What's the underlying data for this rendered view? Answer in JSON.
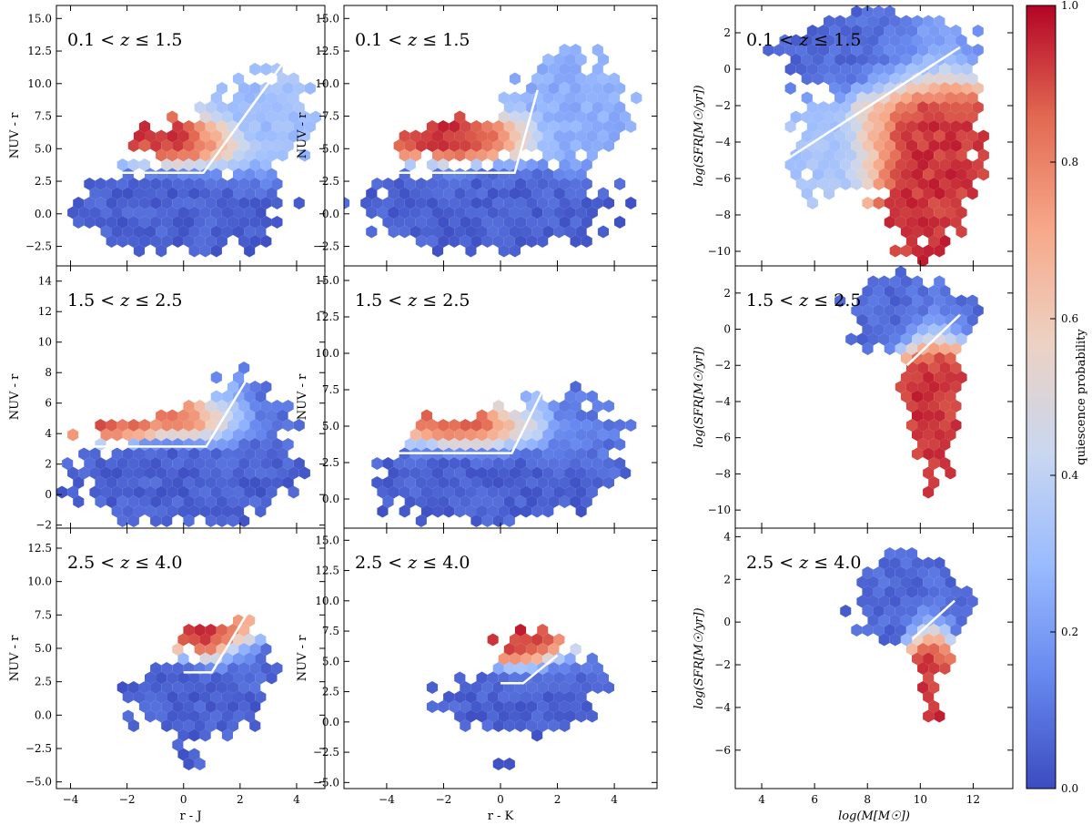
{
  "chart_data": {
    "type": "hexbin",
    "layout": "3x3 grid",
    "colorbar": {
      "label": "quiescence probability",
      "range": [
        0.0,
        1.0
      ],
      "ticks": [
        "0.0",
        "0.2",
        "0.4",
        "0.6",
        "0.8",
        "1.0"
      ],
      "colormap": "coolwarm",
      "stops": [
        "#3b4cc0",
        "#6788ee",
        "#9abbff",
        "#c9d7f0",
        "#edd1c2",
        "#f7a889",
        "#e26952",
        "#b40426"
      ]
    },
    "rows": [
      {
        "label": "0.1 < z ≤ 1.5",
        "prefix": "0.1 < ",
        "var": "z",
        "suffix": " ≤ 1.5"
      },
      {
        "label": "1.5 < z ≤ 2.5",
        "prefix": "1.5 < ",
        "var": "z",
        "suffix": " ≤ 2.5"
      },
      {
        "label": "2.5 < z ≤ 4.0",
        "prefix": "2.5 < ",
        "var": "z",
        "suffix": " ≤ 4.0"
      }
    ],
    "columns": [
      {
        "xlabel": "r - J",
        "xlim": [
          -4.5,
          5.0
        ],
        "xticks": [
          -4,
          -2,
          0,
          2,
          4
        ]
      },
      {
        "xlabel": "r - K",
        "xlim": [
          -5.5,
          5.5
        ],
        "xticks": [
          -4,
          -2,
          0,
          2,
          4
        ]
      },
      {
        "xlabel": "log(M[M☉])",
        "xlim": [
          3.0,
          13.5
        ],
        "xticks": [
          4,
          6,
          8,
          10,
          12
        ]
      }
    ],
    "panels": [
      {
        "id": "rJ-z1",
        "ylabel": "NUV - r",
        "ylim": [
          -4.0,
          16.0
        ],
        "yticks": [
          "-2.5",
          "0.0",
          "2.5",
          "5.0",
          "7.5",
          "10.0",
          "12.5",
          "15.0"
        ],
        "cut_line": [
          [
            -4.0,
            3.15
          ],
          [
            0.7,
            3.15
          ],
          [
            4.0,
            13.0
          ]
        ],
        "blobs": [
          {
            "x": 0.0,
            "y": 0.3,
            "sx": 1.8,
            "sy": 1.6,
            "w": 1.0,
            "p": 0.05
          },
          {
            "x": 2.5,
            "y": 7.0,
            "sx": 1.0,
            "sy": 2.2,
            "w": 0.5,
            "p": 0.28
          },
          {
            "x": 0.0,
            "y": 5.5,
            "sx": 1.2,
            "sy": 1.0,
            "w": 0.45,
            "p": 0.93
          },
          {
            "x": 1.2,
            "y": 6.0,
            "sx": 0.4,
            "sy": 0.9,
            "w": 0.2,
            "p": 0.7
          },
          {
            "x": 3.6,
            "y": 9.0,
            "sx": 0.5,
            "sy": 2.0,
            "w": 0.2,
            "p": 0.35
          }
        ]
      },
      {
        "id": "rK-z1",
        "ylabel": "NUV - r",
        "ylim": [
          -4.0,
          16.0
        ],
        "yticks": [
          "-2.5",
          "0.0",
          "2.5",
          "5.0",
          "7.5",
          "10.0",
          "12.5",
          "15.0"
        ],
        "cut_line": [
          [
            -5.0,
            3.15
          ],
          [
            0.5,
            3.15
          ],
          [
            1.3,
            9.5
          ]
        ],
        "blobs": [
          {
            "x": -0.5,
            "y": 0.5,
            "sx": 2.2,
            "sy": 1.6,
            "w": 1.0,
            "p": 0.05
          },
          {
            "x": 2.5,
            "y": 8.0,
            "sx": 1.2,
            "sy": 2.4,
            "w": 0.55,
            "p": 0.25
          },
          {
            "x": -1.5,
            "y": 5.6,
            "sx": 1.2,
            "sy": 1.0,
            "w": 0.45,
            "p": 0.93
          },
          {
            "x": 0.7,
            "y": 6.2,
            "sx": 0.4,
            "sy": 1.0,
            "w": 0.2,
            "p": 0.7
          }
        ]
      },
      {
        "id": "sfr-z1",
        "ylabel": "log(SFR[M☉/yr])",
        "ylim": [
          -10.8,
          3.5
        ],
        "yticks": [
          "-10",
          "-8",
          "-6",
          "-4",
          "-2",
          "0",
          "2"
        ],
        "cut_line": [
          [
            5.0,
            -4.9
          ],
          [
            11.5,
            1.2
          ]
        ],
        "blobs": [
          {
            "x": 8.5,
            "y": 0.8,
            "sx": 1.8,
            "sy": 1.2,
            "w": 1.0,
            "p": 0.07
          },
          {
            "x": 10.2,
            "y": -4.5,
            "sx": 1.0,
            "sy": 2.8,
            "w": 0.9,
            "p": 0.93
          },
          {
            "x": 6.8,
            "y": -4.5,
            "sx": 1.0,
            "sy": 1.6,
            "w": 0.45,
            "p": 0.33
          },
          {
            "x": 8.2,
            "y": -3.2,
            "sx": 0.5,
            "sy": 1.6,
            "w": 0.3,
            "p": 0.68
          }
        ]
      },
      {
        "id": "rJ-z2",
        "ylabel": "NUV - r",
        "ylim": [
          -2.2,
          15.0
        ],
        "yticks": [
          "-2",
          "0",
          "2",
          "4",
          "6",
          "8",
          "10",
          "12",
          "14"
        ],
        "cut_line": [
          [
            -4.0,
            3.15
          ],
          [
            0.8,
            3.15
          ],
          [
            3.2,
            10.5
          ]
        ],
        "blobs": [
          {
            "x": 0.0,
            "y": 1.0,
            "sx": 1.9,
            "sy": 1.4,
            "w": 1.0,
            "p": 0.05
          },
          {
            "x": 2.2,
            "y": 5.0,
            "sx": 0.9,
            "sy": 1.6,
            "w": 0.55,
            "p": 0.08
          },
          {
            "x": 0.7,
            "y": 4.8,
            "sx": 0.9,
            "sy": 0.8,
            "w": 0.4,
            "p": 0.93
          },
          {
            "x": -2.2,
            "y": 4.2,
            "sx": 1.0,
            "sy": 0.5,
            "w": 0.3,
            "p": 0.92
          },
          {
            "x": 1.8,
            "y": 5.8,
            "sx": 0.3,
            "sy": 1.0,
            "w": 0.15,
            "p": 0.7
          }
        ]
      },
      {
        "id": "rK-z2",
        "ylabel": "NUV - r",
        "ylim": [
          -2.0,
          16.0
        ],
        "yticks": [
          "0.0",
          "2.5",
          "5.0",
          "7.5",
          "10.0",
          "12.5",
          "15.0"
        ],
        "cut_line": [
          [
            -4.0,
            3.15
          ],
          [
            0.4,
            3.15
          ],
          [
            1.5,
            7.5
          ]
        ],
        "blobs": [
          {
            "x": -0.5,
            "y": 1.2,
            "sx": 2.0,
            "sy": 1.4,
            "w": 1.0,
            "p": 0.05
          },
          {
            "x": 2.2,
            "y": 4.5,
            "sx": 1.2,
            "sy": 1.6,
            "w": 0.5,
            "p": 0.1
          },
          {
            "x": -0.6,
            "y": 4.7,
            "sx": 1.4,
            "sy": 0.8,
            "w": 0.4,
            "p": 0.93
          },
          {
            "x": 1.2,
            "y": 5.5,
            "sx": 0.3,
            "sy": 1.0,
            "w": 0.15,
            "p": 0.7
          }
        ]
      },
      {
        "id": "sfr-z2",
        "ylabel": "log(SFR[M☉/yr])",
        "ylim": [
          -11.0,
          3.5
        ],
        "yticks": [
          "-10",
          "-8",
          "-6",
          "-4",
          "-2",
          "0",
          "2"
        ],
        "cut_line": [
          [
            9.5,
            -2.0
          ],
          [
            11.5,
            0.8
          ]
        ],
        "blobs": [
          {
            "x": 9.6,
            "y": 0.8,
            "sx": 1.2,
            "sy": 1.0,
            "w": 1.0,
            "p": 0.07
          },
          {
            "x": 10.4,
            "y": -3.0,
            "sx": 0.6,
            "sy": 1.8,
            "w": 0.7,
            "p": 0.93
          },
          {
            "x": 10.5,
            "y": -7.0,
            "sx": 0.5,
            "sy": 1.5,
            "w": 0.25,
            "p": 0.93
          }
        ]
      },
      {
        "id": "rJ-z3",
        "ylabel": "NUV - r",
        "ylim": [
          -5.5,
          14.0
        ],
        "yticks": [
          "-5.0",
          "-2.5",
          "0.0",
          "2.5",
          "5.0",
          "7.5",
          "10.0",
          "12.5"
        ],
        "cut_line": [
          [
            0.0,
            3.2
          ],
          [
            1.0,
            3.2
          ],
          [
            2.5,
            8.5
          ]
        ],
        "blobs": [
          {
            "x": 0.5,
            "y": 1.2,
            "sx": 1.2,
            "sy": 1.4,
            "w": 1.0,
            "p": 0.05
          },
          {
            "x": 2.2,
            "y": 3.8,
            "sx": 0.6,
            "sy": 1.0,
            "w": 0.6,
            "p": 0.08
          },
          {
            "x": 1.0,
            "y": 5.5,
            "sx": 0.6,
            "sy": 0.9,
            "w": 0.45,
            "p": 0.93
          },
          {
            "x": 0.5,
            "y": -3.0,
            "sx": 0.5,
            "sy": 0.8,
            "w": 0.15,
            "p": 0.05
          },
          {
            "x": 2.2,
            "y": 6.0,
            "sx": 0.3,
            "sy": 1.0,
            "w": 0.15,
            "p": 0.7
          }
        ]
      },
      {
        "id": "rK-z3",
        "ylabel": "NUV - r",
        "ylim": [
          -5.5,
          16.0
        ],
        "yticks": [
          "-5.0",
          "-2.5",
          "0.0",
          "2.5",
          "5.0",
          "7.5",
          "10.0",
          "12.5",
          "15.0"
        ],
        "cut_line": [
          [
            0.0,
            3.2
          ],
          [
            0.8,
            3.2
          ],
          [
            2.0,
            5.5
          ]
        ],
        "blobs": [
          {
            "x": 0.5,
            "y": 1.8,
            "sx": 1.3,
            "sy": 1.3,
            "w": 1.0,
            "p": 0.05
          },
          {
            "x": 2.2,
            "y": 3.8,
            "sx": 0.8,
            "sy": 1.0,
            "w": 0.6,
            "p": 0.08
          },
          {
            "x": 1.0,
            "y": 6.0,
            "sx": 0.7,
            "sy": 0.9,
            "w": 0.45,
            "p": 0.93
          },
          {
            "x": 0.0,
            "y": -2.8,
            "sx": 0.5,
            "sy": 0.8,
            "w": 0.12,
            "p": 0.05
          },
          {
            "x": 2.0,
            "y": 6.8,
            "sx": 0.3,
            "sy": 0.9,
            "w": 0.12,
            "p": 0.7
          }
        ]
      },
      {
        "id": "sfr-z3",
        "ylabel": "log(SFR[M☉/yr])",
        "ylim": [
          -7.8,
          4.4
        ],
        "yticks": [
          "-6",
          "-4",
          "-2",
          "0",
          "2",
          "4"
        ],
        "cut_line": [
          [
            9.7,
            -0.8
          ],
          [
            11.3,
            1.0
          ]
        ],
        "blobs": [
          {
            "x": 9.6,
            "y": 1.0,
            "sx": 1.1,
            "sy": 1.0,
            "w": 1.0,
            "p": 0.07
          },
          {
            "x": 10.3,
            "y": -1.5,
            "sx": 0.4,
            "sy": 1.0,
            "w": 0.6,
            "p": 0.93
          },
          {
            "x": 10.4,
            "y": -4.0,
            "sx": 0.3,
            "sy": 0.8,
            "w": 0.2,
            "p": 0.93
          }
        ]
      }
    ]
  }
}
